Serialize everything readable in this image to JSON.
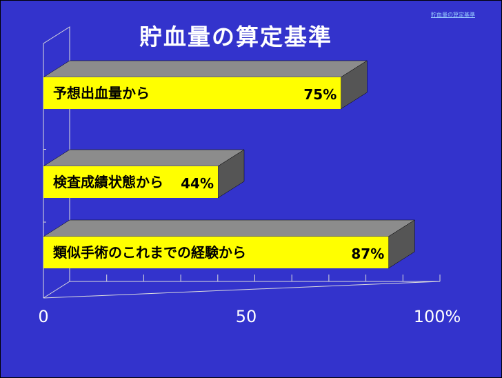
{
  "slide": {
    "title": "貯血量の算定基準",
    "nav_link": "貯血量の算定基準"
  },
  "chart_data": {
    "type": "bar",
    "orientation": "horizontal",
    "style": "3d",
    "categories": [
      "予想出血量から",
      "検査成績状態から",
      "類似手術のこれまでの経験から"
    ],
    "values": [
      75,
      44,
      87
    ],
    "value_labels": [
      "75%",
      "44%",
      "87%"
    ],
    "title": "貯血量の算定基準",
    "xlim": [
      0,
      100
    ],
    "x_tick_labels": [
      "0",
      "50",
      "100%"
    ],
    "colors": {
      "bar_front": "#ffff00",
      "bar_top": "#8c8c8c",
      "bar_side": "#555555",
      "background": "#3333cc"
    }
  }
}
